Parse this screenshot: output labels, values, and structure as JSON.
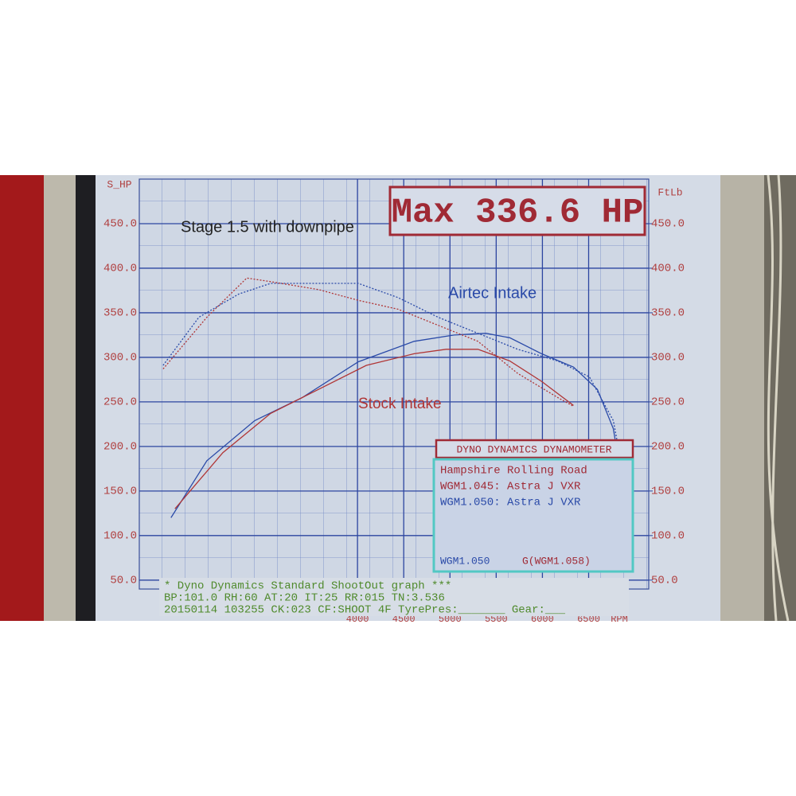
{
  "chart_data": {
    "type": "line",
    "title": "Max 336.6 HP",
    "annotations": [
      "Stage 1.5 with downpipe",
      "Airtec Intake",
      "Stock Intake"
    ],
    "y_label": "S_HP",
    "y2_label": "FtLb",
    "x_label": "RPM",
    "grid": true,
    "xlim": [
      1640,
      7150
    ],
    "xticks": [
      4000,
      4500,
      5000,
      5500,
      6000,
      6500
    ],
    "ylim": [
      40,
      500
    ],
    "yticks": [
      {
        "value": 50,
        "label": "50.0"
      },
      {
        "value": 100,
        "label": "100.0"
      },
      {
        "value": 150,
        "label": "150.0"
      },
      {
        "value": 200,
        "label": "200.0"
      },
      {
        "value": 250,
        "label": "250.0"
      },
      {
        "value": 300,
        "label": "300.0"
      },
      {
        "value": 350,
        "label": "350.0"
      },
      {
        "value": 400,
        "label": "400.0"
      },
      {
        "value": 450,
        "label": "450.0"
      }
    ],
    "y2lim": [
      40,
      500
    ],
    "y2ticks": [
      {
        "value": 50,
        "label": "50.0"
      },
      {
        "value": 100,
        "label": "100.0"
      },
      {
        "value": 150,
        "label": "150.0"
      },
      {
        "value": 200,
        "label": "200.0"
      },
      {
        "value": 250,
        "label": "250.0"
      },
      {
        "value": 300,
        "label": "300.0"
      },
      {
        "value": 350,
        "label": "350.0"
      },
      {
        "value": 400,
        "label": "400.0"
      },
      {
        "value": 450,
        "label": "450.0"
      }
    ],
    "series": [
      {
        "color": "#2a4aa8",
        "dash": false,
        "x": [
          1983,
          2371,
          2888,
          3405,
          4009,
          4612,
          5043,
          5388,
          5647,
          5991,
          6336,
          6595,
          6767,
          6897,
          6897
        ],
        "values": [
          120,
          184,
          229,
          255,
          295,
          318,
          325,
          327,
          322,
          304,
          289,
          264,
          220,
          139,
          108
        ]
      },
      {
        "color": "#b03535",
        "dash": false,
        "x": [
          2026,
          2543,
          3060,
          3578,
          4095,
          4612,
          4957,
          5302,
          5647,
          5991,
          6336
        ],
        "values": [
          130,
          193,
          237,
          264,
          291,
          304,
          309,
          309,
          296,
          273,
          246
        ]
      },
      {
        "color": "#2a4aa8",
        "dash": true,
        "axis": "y2",
        "x": [
          1897,
          2285,
          2716,
          3060,
          3578,
          4009,
          4440,
          4871,
          5302,
          5733,
          6164,
          6509,
          6767,
          6897
        ],
        "values": [
          291,
          345,
          371,
          383,
          383,
          383,
          367,
          345,
          327,
          309,
          296,
          278,
          229,
          157
        ]
      },
      {
        "color": "#b03535",
        "dash": true,
        "axis": "y2",
        "x": [
          1897,
          2371,
          2802,
          3060,
          3578,
          4009,
          4440,
          4871,
          5302,
          5733,
          6164,
          6336
        ],
        "values": [
          287,
          345,
          389,
          385,
          376,
          364,
          354,
          336,
          318,
          282,
          255,
          245
        ]
      }
    ]
  },
  "legend_box": {
    "title": "DYNO DYNAMICS DYNAMOMETER",
    "lines": [
      "Hampshire Rolling Road",
      "WGM1.045: Astra J VXR",
      "WGM1.050: Astra J VXR"
    ],
    "footer": [
      "WGM1.050",
      "G(WGM1.058)"
    ]
  },
  "footer": {
    "lines": [
      "* Dyno Dynamics Standard ShootOut graph ***",
      "BP:101.0 RH:60 AT:20 IT:25 RR:015 TN:3.536",
      "20150114 103255 CK:023 CF:SHOOT 4F TyrePres:_______  Gear:___"
    ]
  }
}
